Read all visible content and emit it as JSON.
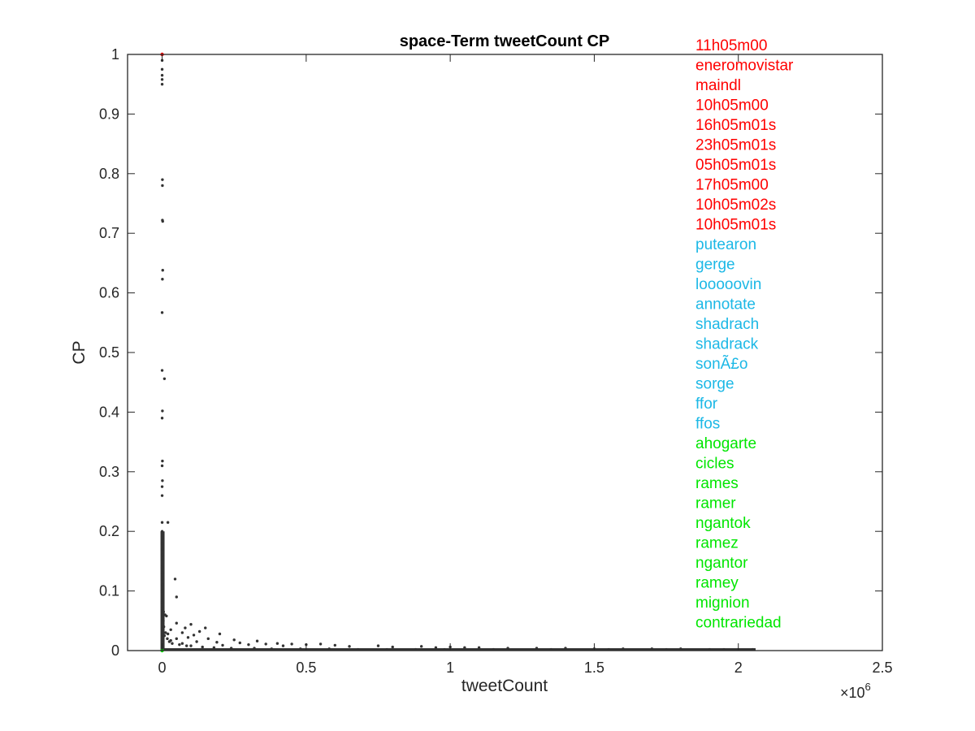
{
  "chart_data": {
    "type": "scatter",
    "title": "space-Term tweetCount CP",
    "xlabel": "tweetCount",
    "ylabel": "CP",
    "x_exponent_label": "×10",
    "x_exponent_power": "6",
    "xlim": [
      -0.12,
      2.5
    ],
    "ylim": [
      0,
      1
    ],
    "x_ticks": [
      0,
      0.5,
      1,
      1.5,
      2,
      2.5
    ],
    "x_tick_labels": [
      "0",
      "0.5",
      "1",
      "1.5",
      "2",
      "2.5"
    ],
    "y_ticks": [
      0,
      0.1,
      0.2,
      0.3,
      0.4,
      0.5,
      0.6,
      0.7,
      0.8,
      0.9,
      1
    ],
    "y_tick_labels": [
      "0",
      "0.1",
      "0.2",
      "0.3",
      "0.4",
      "0.5",
      "0.6",
      "0.7",
      "0.8",
      "0.9",
      "1"
    ],
    "grid": false,
    "point_color": "#333333",
    "highlight_colors": {
      "top": "#ff0000",
      "middle": "#1cb8e6",
      "bottom": "#00e600"
    },
    "points": [
      [
        0.0,
        1.0
      ],
      [
        0.0,
        0.99
      ],
      [
        0.0,
        0.975
      ],
      [
        0.0,
        0.965
      ],
      [
        0.0,
        0.958
      ],
      [
        0.0,
        0.95
      ],
      [
        0.001,
        0.79
      ],
      [
        0.001,
        0.78
      ],
      [
        0.001,
        0.722
      ],
      [
        0.002,
        0.72
      ],
      [
        0.002,
        0.638
      ],
      [
        0.001,
        0.623
      ],
      [
        0.0,
        0.567
      ],
      [
        0.0,
        0.47
      ],
      [
        0.008,
        0.456
      ],
      [
        0.001,
        0.402
      ],
      [
        0.0,
        0.39
      ],
      [
        0.001,
        0.318
      ],
      [
        0.0,
        0.31
      ],
      [
        0.001,
        0.285
      ],
      [
        0.0,
        0.275
      ],
      [
        0.0,
        0.26
      ],
      [
        0.0,
        0.215
      ],
      [
        0.02,
        0.215
      ],
      [
        0.0,
        0.2
      ],
      [
        0.002,
        0.19
      ],
      [
        0.0,
        0.18
      ],
      [
        0.001,
        0.17
      ],
      [
        0.0,
        0.16
      ],
      [
        0.002,
        0.15
      ],
      [
        0.0,
        0.14
      ],
      [
        0.001,
        0.13
      ],
      [
        0.0,
        0.12
      ],
      [
        0.045,
        0.12
      ],
      [
        0.002,
        0.11
      ],
      [
        0.0,
        0.1
      ],
      [
        0.05,
        0.09
      ],
      [
        0.003,
        0.085
      ],
      [
        0.0,
        0.08
      ],
      [
        0.002,
        0.07
      ],
      [
        0.005,
        0.065
      ],
      [
        0.01,
        0.06
      ],
      [
        0.015,
        0.058
      ],
      [
        0.05,
        0.046
      ],
      [
        0.1,
        0.044
      ],
      [
        0.15,
        0.038
      ],
      [
        0.08,
        0.038
      ],
      [
        0.03,
        0.035
      ],
      [
        0.13,
        0.032
      ],
      [
        0.2,
        0.028
      ],
      [
        0.07,
        0.03
      ],
      [
        0.02,
        0.028
      ],
      [
        0.11,
        0.026
      ],
      [
        0.09,
        0.022
      ],
      [
        0.16,
        0.02
      ],
      [
        0.05,
        0.02
      ],
      [
        0.25,
        0.018
      ],
      [
        0.03,
        0.017
      ],
      [
        0.33,
        0.016
      ],
      [
        0.12,
        0.015
      ],
      [
        0.19,
        0.014
      ],
      [
        0.27,
        0.013
      ],
      [
        0.07,
        0.012
      ],
      [
        0.4,
        0.012
      ],
      [
        0.45,
        0.011
      ],
      [
        0.36,
        0.011
      ],
      [
        0.55,
        0.011
      ],
      [
        0.3,
        0.01
      ],
      [
        0.5,
        0.01
      ],
      [
        0.21,
        0.009
      ],
      [
        0.6,
        0.009
      ],
      [
        0.75,
        0.008
      ],
      [
        0.42,
        0.008
      ],
      [
        0.1,
        0.008
      ],
      [
        0.65,
        0.007
      ],
      [
        0.9,
        0.007
      ],
      [
        0.8,
        0.006
      ],
      [
        1.0,
        0.006
      ],
      [
        1.05,
        0.005
      ],
      [
        1.1,
        0.005
      ],
      [
        0.95,
        0.005
      ],
      [
        1.2,
        0.004
      ],
      [
        1.3,
        0.004
      ],
      [
        1.4,
        0.004
      ],
      [
        1.5,
        0.003
      ],
      [
        1.6,
        0.003
      ],
      [
        1.7,
        0.003
      ],
      [
        1.8,
        0.003
      ],
      [
        1.9,
        0.002
      ],
      [
        2.0,
        0.002
      ],
      [
        2.05,
        0.002
      ],
      [
        0.004,
        0.05
      ],
      [
        0.006,
        0.04
      ],
      [
        0.012,
        0.03
      ],
      [
        0.008,
        0.025
      ],
      [
        0.018,
        0.02
      ],
      [
        0.025,
        0.015
      ],
      [
        0.035,
        0.012
      ],
      [
        0.06,
        0.01
      ],
      [
        0.085,
        0.008
      ],
      [
        0.14,
        0.006
      ],
      [
        0.18,
        0.005
      ],
      [
        0.24,
        0.004
      ],
      [
        0.32,
        0.004
      ],
      [
        0.38,
        0.003
      ],
      [
        0.48,
        0.003
      ],
      [
        0.58,
        0.003
      ],
      [
        0.68,
        0.002
      ],
      [
        0.78,
        0.002
      ],
      [
        0.88,
        0.002
      ],
      [
        0.98,
        0.002
      ],
      [
        1.15,
        0.002
      ],
      [
        1.35,
        0.002
      ],
      [
        1.55,
        0.002
      ],
      [
        1.75,
        0.002
      ],
      [
        1.95,
        0.002
      ]
    ],
    "band_points_x_max": 2.06,
    "highlight_points": [
      {
        "x": 0.0,
        "y": 1.0,
        "group": "top"
      },
      {
        "x": 0.0,
        "y": 0.0,
        "group": "bottom"
      }
    ],
    "legend_terms": [
      {
        "text": "11h05m00",
        "group": "top"
      },
      {
        "text": "eneromovistar",
        "group": "top"
      },
      {
        "text": "maindl",
        "group": "top"
      },
      {
        "text": "10h05m00",
        "group": "top"
      },
      {
        "text": "16h05m01s",
        "group": "top"
      },
      {
        "text": "23h05m01s",
        "group": "top"
      },
      {
        "text": "05h05m01s",
        "group": "top"
      },
      {
        "text": "17h05m00",
        "group": "top"
      },
      {
        "text": "10h05m02s",
        "group": "top"
      },
      {
        "text": "10h05m01s",
        "group": "top"
      },
      {
        "text": "putearon",
        "group": "middle"
      },
      {
        "text": "gerge",
        "group": "middle"
      },
      {
        "text": "looooovin",
        "group": "middle"
      },
      {
        "text": "annotate",
        "group": "middle"
      },
      {
        "text": "shadrach",
        "group": "middle"
      },
      {
        "text": "shadrack",
        "group": "middle"
      },
      {
        "text": "sonÃ£o",
        "group": "middle"
      },
      {
        "text": "sorge",
        "group": "middle"
      },
      {
        "text": "ffor",
        "group": "middle"
      },
      {
        "text": "ffos",
        "group": "middle"
      },
      {
        "text": "ahogarte",
        "group": "bottom"
      },
      {
        "text": "cicles",
        "group": "bottom"
      },
      {
        "text": "rames",
        "group": "bottom"
      },
      {
        "text": "ramer",
        "group": "bottom"
      },
      {
        "text": "ngantok",
        "group": "bottom"
      },
      {
        "text": "ramez",
        "group": "bottom"
      },
      {
        "text": "ngantor",
        "group": "bottom"
      },
      {
        "text": "ramey",
        "group": "bottom"
      },
      {
        "text": "mignion",
        "group": "bottom"
      },
      {
        "text": "contrariedad",
        "group": "bottom"
      }
    ]
  }
}
